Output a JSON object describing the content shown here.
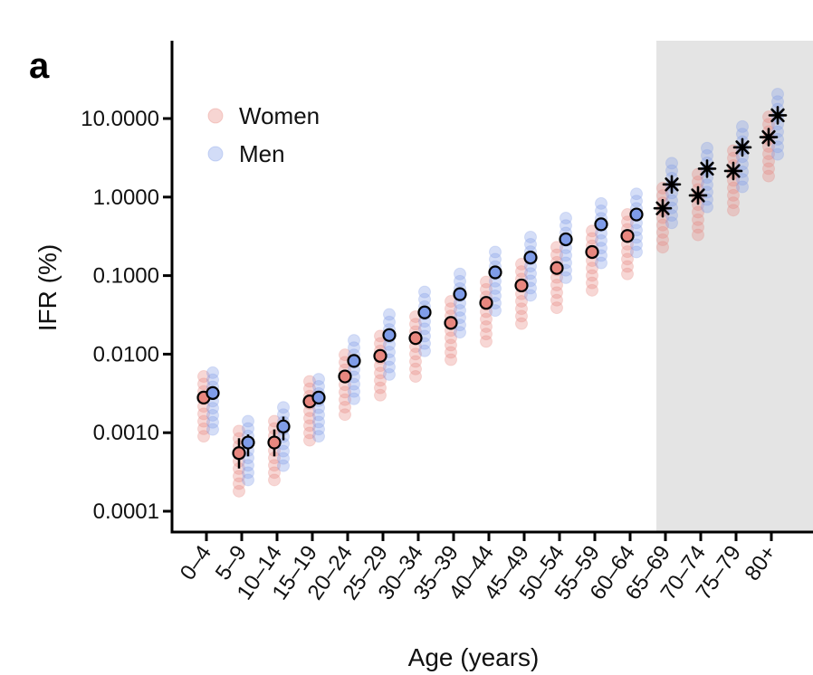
{
  "panel_label": "a",
  "chart_data": {
    "type": "scatter",
    "xlabel": "Age (years)",
    "ylabel": "IFR (%)",
    "yscale": "log",
    "ylim": [
      0.0001,
      30
    ],
    "yticks": [
      {
        "value": 0.0001,
        "label": "0.0001"
      },
      {
        "value": 0.001,
        "label": "0.0010"
      },
      {
        "value": 0.01,
        "label": "0.0100"
      },
      {
        "value": 0.1,
        "label": "0.1000"
      },
      {
        "value": 1,
        "label": "1.0000"
      },
      {
        "value": 10,
        "label": "10.0000"
      }
    ],
    "categories": [
      "0–4",
      "5–9",
      "10–14",
      "15–19",
      "20–24",
      "25–29",
      "30–34",
      "35–39",
      "40–44",
      "45–49",
      "50–54",
      "55–59",
      "60–64",
      "65–69",
      "70–74",
      "75–79",
      "80+"
    ],
    "shaded_from_category": "65–69",
    "legend_position": "top-left",
    "series": [
      {
        "name": "Women",
        "color": "#e8877f",
        "estimates": [
          0.0028,
          0.00055,
          0.00075,
          0.0025,
          0.0052,
          0.0095,
          0.016,
          0.025,
          0.045,
          0.075,
          0.125,
          0.2,
          0.32,
          0.72,
          1.05,
          2.15,
          5.8
        ],
        "range_low": [
          0.0009,
          0.00018,
          0.00025,
          0.0008,
          0.0017,
          0.003,
          0.0052,
          0.0085,
          0.0145,
          0.0245,
          0.039,
          0.065,
          0.105,
          0.23,
          0.33,
          0.68,
          1.85
        ],
        "range_high": [
          0.0052,
          0.00105,
          0.0014,
          0.0045,
          0.0098,
          0.017,
          0.03,
          0.047,
          0.083,
          0.14,
          0.23,
          0.37,
          0.6,
          1.3,
          1.95,
          3.9,
          10.5
        ],
        "markers": [
          "circle",
          "circle",
          "circle",
          "circle",
          "circle",
          "circle",
          "circle",
          "circle",
          "circle",
          "circle",
          "circle",
          "circle",
          "circle",
          "asterisk",
          "asterisk",
          "asterisk",
          "asterisk"
        ]
      },
      {
        "name": "Men",
        "color": "#7f9ce8",
        "estimates": [
          0.0032,
          0.00075,
          0.0012,
          0.0028,
          0.0082,
          0.0175,
          0.034,
          0.058,
          0.11,
          0.17,
          0.29,
          0.45,
          0.6,
          1.45,
          2.3,
          4.3,
          11.0
        ],
        "range_low": [
          0.0011,
          0.00025,
          0.00038,
          0.0009,
          0.0027,
          0.0055,
          0.011,
          0.019,
          0.036,
          0.056,
          0.094,
          0.145,
          0.2,
          0.47,
          0.75,
          1.35,
          3.5
        ],
        "range_high": [
          0.0058,
          0.0014,
          0.0021,
          0.0048,
          0.015,
          0.032,
          0.062,
          0.105,
          0.2,
          0.31,
          0.54,
          0.83,
          1.1,
          2.7,
          4.2,
          7.9,
          20.5
        ],
        "markers": [
          "circle",
          "circle",
          "circle",
          "circle",
          "circle",
          "circle",
          "circle",
          "circle",
          "circle",
          "circle",
          "circle",
          "circle",
          "circle",
          "asterisk",
          "asterisk",
          "asterisk",
          "asterisk"
        ]
      }
    ],
    "error_bars": [
      {
        "series": "Women",
        "category": "5–9",
        "low": 0.00035,
        "high": 0.00085
      },
      {
        "series": "Men",
        "category": "5–9",
        "low": 0.0005,
        "high": 0.00095
      },
      {
        "series": "Women",
        "category": "10–14",
        "low": 0.0005,
        "high": 0.0011
      },
      {
        "series": "Men",
        "category": "10–14",
        "low": 0.0008,
        "high": 0.0016
      }
    ]
  }
}
